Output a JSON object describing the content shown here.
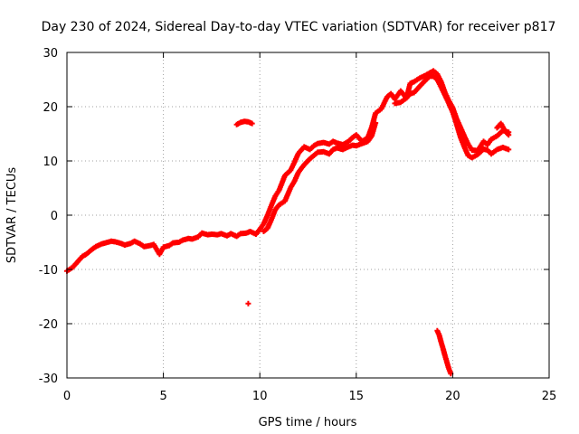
{
  "chart_data": {
    "type": "scatter",
    "title": "Day 230 of 2024, Sidereal Day-to-day VTEC variation (SDTVAR) for receiver p817",
    "xlabel": "GPS time / hours",
    "ylabel": "SDTVAR / TECUs",
    "xlim": [
      0,
      25
    ],
    "ylim": [
      -30,
      30
    ],
    "xticks": [
      0,
      5,
      10,
      15,
      20,
      25
    ],
    "yticks": [
      -30,
      -20,
      -10,
      0,
      10,
      20,
      30
    ],
    "grid": true,
    "marker": "+",
    "colors": {
      "points": "#ff0000",
      "axes": "#000000",
      "grid": "#a0a0a0"
    },
    "series": [
      {
        "x": [
          0.0,
          0.3,
          0.5,
          0.8,
          1.0,
          1.3,
          1.5,
          1.8,
          2.0,
          2.3,
          2.5,
          2.8,
          3.0,
          3.3,
          3.5,
          3.8,
          4.0,
          4.3,
          4.5,
          4.8,
          5.0,
          5.3,
          5.5,
          5.8,
          6.0,
          6.3,
          6.5,
          6.8,
          7.0,
          7.3,
          7.5,
          7.8,
          8.0,
          8.3,
          8.5,
          8.8,
          9.0,
          9.3,
          9.5,
          9.8,
          10.0,
          10.2,
          10.4,
          10.6,
          10.8,
          11.0,
          11.3,
          11.6,
          11.8,
          12.0,
          12.3,
          12.6,
          12.8,
          13.0,
          13.3,
          13.6,
          13.8,
          14.0,
          14.3,
          14.6,
          14.8,
          15.0,
          15.3,
          15.6,
          15.8,
          16.0,
          16.3,
          16.6,
          16.8,
          17.0,
          17.3,
          17.6,
          17.8,
          18.0,
          18.3,
          18.6,
          18.8,
          19.0,
          19.2,
          19.4,
          19.6,
          19.8,
          20.0,
          20.2,
          20.4,
          20.6,
          20.8,
          21.0,
          21.3,
          21.6,
          21.8,
          22.0,
          22.3,
          22.6,
          22.9
        ],
        "y": [
          -10.3,
          -9.6,
          -8.8,
          -7.6,
          -7.2,
          -6.3,
          -5.8,
          -5.3,
          -5.1,
          -4.8,
          -4.9,
          -5.2,
          -5.5,
          -5.2,
          -4.8,
          -5.3,
          -5.8,
          -5.6,
          -5.4,
          -7.2,
          -5.9,
          -5.6,
          -5.1,
          -5.0,
          -4.6,
          -4.3,
          -4.4,
          -4.0,
          -3.3,
          -3.6,
          -3.5,
          -3.6,
          -3.4,
          -3.8,
          -3.4,
          -3.9,
          -3.4,
          -3.3,
          -3.0,
          -3.5,
          -2.6,
          -1.6,
          0.0,
          1.8,
          3.5,
          4.6,
          7.3,
          8.3,
          9.8,
          11.4,
          12.6,
          12.1,
          12.8,
          13.2,
          13.4,
          13.1,
          13.6,
          13.3,
          13.0,
          13.6,
          14.3,
          14.8,
          13.6,
          14.3,
          16.2,
          18.8,
          19.6,
          21.8,
          22.4,
          21.4,
          22.9,
          21.6,
          24.3,
          24.6,
          25.3,
          25.8,
          26.2,
          26.6,
          26.0,
          24.6,
          22.6,
          21.1,
          19.8,
          17.8,
          16.2,
          14.6,
          13.1,
          12.0,
          11.9,
          13.6,
          13.0,
          14.0,
          14.6,
          15.6,
          15.3
        ]
      },
      {
        "x": [
          10.2,
          10.4,
          10.6,
          10.8,
          11.0,
          11.3,
          11.6,
          11.8,
          12.0,
          12.3,
          12.6,
          12.8,
          13.0,
          13.3,
          13.6,
          13.8,
          14.0,
          14.3,
          14.6,
          14.8,
          15.0,
          15.3,
          15.6,
          15.8,
          16.0
        ],
        "y": [
          -3.0,
          -2.4,
          -0.8,
          1.0,
          1.9,
          2.6,
          5.1,
          6.3,
          7.9,
          9.3,
          10.4,
          11.0,
          11.6,
          11.7,
          11.3,
          12.1,
          12.4,
          12.1,
          12.6,
          12.9,
          12.8,
          13.2,
          13.6,
          14.6,
          17.0
        ]
      },
      {
        "x": [
          17.0,
          17.3,
          17.6,
          17.8,
          18.0,
          18.3,
          18.6,
          18.8,
          19.0,
          19.2,
          19.4,
          19.6,
          19.8,
          20.0,
          20.2,
          20.4,
          20.6,
          20.8,
          21.0,
          21.3,
          21.6,
          21.8,
          22.0,
          22.3,
          22.6,
          22.9
        ],
        "y": [
          20.6,
          20.8,
          21.6,
          22.4,
          22.6,
          23.8,
          24.9,
          25.6,
          25.6,
          25.0,
          23.6,
          22.1,
          20.6,
          19.0,
          16.8,
          14.4,
          12.6,
          11.0,
          10.6,
          11.2,
          12.2,
          12.0,
          11.3,
          12.1,
          12.5,
          12.1
        ]
      },
      {
        "x": [
          22.3,
          22.5,
          22.7,
          22.9
        ],
        "y": [
          16.1,
          16.9,
          15.6,
          14.8
        ]
      },
      {
        "x": [
          8.8,
          9.0,
          9.2,
          9.4,
          9.6
        ],
        "y": [
          16.7,
          17.1,
          17.3,
          17.2,
          16.9
        ]
      },
      {
        "x": [
          9.4
        ],
        "y": [
          -16.3
        ]
      },
      {
        "x": [
          19.2,
          19.3,
          19.4,
          19.5,
          19.6,
          19.7,
          19.8,
          19.9
        ],
        "y": [
          -21.3,
          -22.1,
          -23.4,
          -24.6,
          -25.9,
          -27.1,
          -28.3,
          -29.2
        ]
      }
    ]
  }
}
